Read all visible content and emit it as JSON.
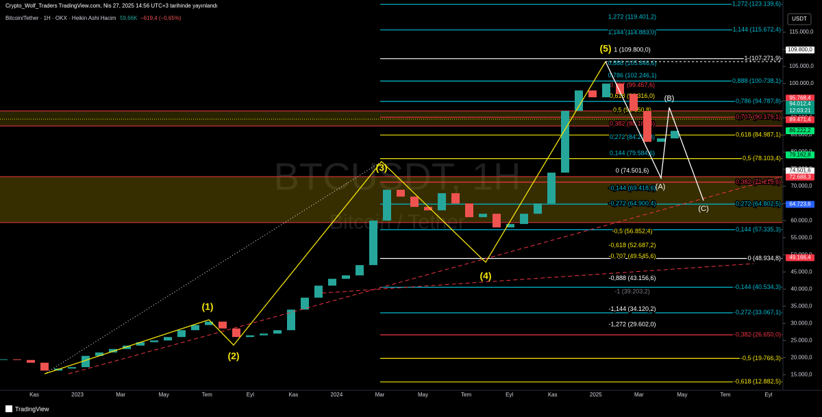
{
  "chart_data": {
    "type": "candlestick",
    "title": "Crypto_Wolf_Traders TradingView.com, Nis 27, 2025 14:56 UTC+3 tarihinde yayınlandı",
    "legend": "Bitcoin/Tether · 1H · OKX · Heikin Ashi  Hacim",
    "volume": "59,66K",
    "change": "−619,4 (−0,65%)",
    "watermark": "BTCUSDT, 1H",
    "watermark_sub": "Bitcoin / Tether",
    "currency": "USDT",
    "footer": "TradingView",
    "categories": [
      "Kas",
      "2023",
      "Mar",
      "May",
      "Tem",
      "Eyl",
      "Kas",
      "2024",
      "Mar",
      "May",
      "Tem",
      "Eyl",
      "Kas",
      "2025",
      "Mar",
      "May",
      "Tem",
      "Eyl"
    ],
    "candles": {
      "close": [
        19500,
        19300,
        18500,
        16200,
        16800,
        17200,
        20500,
        21500,
        22500,
        23500,
        24500,
        25000,
        26000,
        28000,
        29500,
        30500,
        28500,
        26000,
        26500,
        27000,
        28000,
        34000,
        37500,
        41000,
        43000,
        44000,
        47000,
        60000,
        69000,
        67000,
        64000,
        63000,
        68000,
        65000,
        61000,
        62000,
        58000,
        59000,
        62000,
        65000,
        74000,
        92000,
        98000,
        96000,
        100000,
        97000,
        92000,
        83000,
        84000,
        86200
      ]
    },
    "up_color": "#26a69a",
    "down_color": "#ef5350",
    "ylim": [
      10450,
      124405
    ],
    "yticks": [
      {
        "value": 15000,
        "label": "15.000,0"
      },
      {
        "value": 20000,
        "label": "20.000,0"
      },
      {
        "value": 25000,
        "label": "25.000,0"
      },
      {
        "value": 30000,
        "label": "30.000,0"
      },
      {
        "value": 35000,
        "label": "35.000,0"
      },
      {
        "value": 40000,
        "label": "40.000,0"
      },
      {
        "value": 45000,
        "label": "45.000,0"
      },
      {
        "value": 50000,
        "label": "50.000,0"
      },
      {
        "value": 55000,
        "label": "55.000,0"
      },
      {
        "value": 60000,
        "label": "60.000,0"
      },
      {
        "value": 65000,
        "label": "65.000,0"
      },
      {
        "value": 70000,
        "label": "70.000,0"
      },
      {
        "value": 75000,
        "label": "75.000,0"
      },
      {
        "value": 80000,
        "label": "80.000,0"
      },
      {
        "value": 85000,
        "label": "85.000,0"
      },
      {
        "value": 90000,
        "label": "90.000,0"
      },
      {
        "value": 95000,
        "label": "95.000,0"
      },
      {
        "value": 100000,
        "label": "100.000,0"
      },
      {
        "value": 105000,
        "label": "105.000,0"
      },
      {
        "value": 110000,
        "label": "110.000,0"
      },
      {
        "value": 115000,
        "label": "115.000,0"
      }
    ],
    "fib_right": [
      {
        "label": "1,272 (123.139,6)",
        "price": 123139.6,
        "color": "#00bcd4"
      },
      {
        "label": "1,144 (115.672,4)",
        "price": 115672.4,
        "color": "#00bcd4"
      },
      {
        "label": "1 (107.271,9)",
        "price": 107271.9,
        "color": "#ffffff"
      },
      {
        "label": "0,888 (100.738,1)",
        "price": 100738.1,
        "color": "#00bcd4"
      },
      {
        "label": "0,786 (94.787,8)",
        "price": 94787.8,
        "color": "#00bcd4"
      },
      {
        "label": "0,707 (90.179,1)",
        "price": 90179.1,
        "color": "#f23645"
      },
      {
        "label": "0,618 (84.987,1)",
        "price": 84987.1,
        "color": "#f5e50a"
      },
      {
        "label": "0,5 (78.103,4)",
        "price": 78103.4,
        "color": "#f5e50a"
      },
      {
        "label": "0,382 (71.219,6)",
        "price": 71219.6,
        "color": "#f23645"
      },
      {
        "label": "0,272 (64.802,5)",
        "price": 64802.5,
        "color": "#00bcd4"
      },
      {
        "label": "0,144 (57.335,3)",
        "price": 57335.3,
        "color": "#00bcd4"
      },
      {
        "label": "0 (48.934,8)",
        "price": 48934.8,
        "color": "#ffffff"
      },
      {
        "label": "-0,144 (40.534,3)",
        "price": 40534.3,
        "color": "#00bcd4"
      },
      {
        "label": "-0,272 (33.067,1)",
        "price": 33067.1,
        "color": "#00bcd4"
      },
      {
        "label": "-0,382 (26.650,0)",
        "price": 26650,
        "color": "#f23645"
      },
      {
        "label": "-0,5 (19.766,3)",
        "price": 19766.3,
        "color": "#f5e50a"
      },
      {
        "label": "-0,618 (12.882,5)",
        "price": 12882.5,
        "color": "#f5e50a"
      }
    ],
    "fib_middle": [
      {
        "label": "1,272 (119.401,2)",
        "price": 119401.2,
        "color": "#00bcd4"
      },
      {
        "label": "1,144 (114.883,0)",
        "price": 114883,
        "color": "#00bcd4"
      },
      {
        "label": "1 (109.800,0)",
        "price": 109800,
        "color": "#ffffff"
      },
      {
        "label": "0,888 (105.846,6)",
        "price": 105846.6,
        "color": "#00bcd4"
      },
      {
        "label": "0,786 (102.246,1)",
        "price": 102246.1,
        "color": "#00bcd4"
      },
      {
        "label": "0,707 (99.457,6)",
        "price": 99457.6,
        "color": "#f23645"
      },
      {
        "label": "0,618 (96.316,0)",
        "price": 96316,
        "color": "#f5e50a"
      },
      {
        "label": "0,5 (92.150,8)",
        "price": 92150.8,
        "color": "#f5e50a"
      },
      {
        "label": "0,382 (88.185,6)",
        "price": 88185.6,
        "color": "#f23645"
      },
      {
        "label": "0,272 (84.292,8)",
        "price": 84292.8,
        "color": "#00bcd4"
      },
      {
        "label": "0,144 (79.584,6)",
        "price": 79584.6,
        "color": "#00bcd4"
      },
      {
        "label": "0 (74.501,6)",
        "price": 74501.6,
        "color": "#ffffff"
      },
      {
        "label": "-0,144 (69.418,6)",
        "price": 69418.6,
        "color": "#00bcd4"
      },
      {
        "label": "-0,272 (64.900,4)",
        "price": 64900.4,
        "color": "#00bcd4"
      },
      {
        "label": "-0,5 (56.852,4)",
        "price": 56852.4,
        "color": "#f5e50a"
      },
      {
        "label": "-0,618 (52.687,2)",
        "price": 52687.2,
        "color": "#f5e50a"
      },
      {
        "label": "-0,707 (49.545,6)",
        "price": 49545.6,
        "color": "#f5e50a"
      },
      {
        "label": "-0,888 (43.156,6)",
        "price": 43156.6,
        "color": "#ffffff"
      },
      {
        "label": "-1 (39.203,2)",
        "price": 39203.2,
        "color": "#787b86"
      },
      {
        "label": "-1,144 (34.120,2)",
        "price": 34120.2,
        "color": "#ffffff"
      },
      {
        "label": "-1,272 (29.602,0)",
        "price": 29602,
        "color": "#ffffff"
      }
    ],
    "badges": [
      {
        "value": 109800,
        "label": "109.800,0",
        "bg": "#ffffff",
        "fg": "#000000"
      },
      {
        "value": 95768.4,
        "label": "95.768,4",
        "bg": "#f23645",
        "fg": "#ffffff"
      },
      {
        "value": 94012.4,
        "label": "94.012,4",
        "bg": "#089981",
        "fg": "#ffffff"
      },
      {
        "value": 89471.4,
        "label": "89.471,4",
        "bg": "#f23645",
        "fg": "#ffffff"
      },
      {
        "value": 86222.2,
        "label": "86.222,2",
        "bg": "#00e676",
        "fg": "#000000"
      },
      {
        "value": 79162.8,
        "label": "79.162,8",
        "bg": "#00e676",
        "fg": "#000000"
      },
      {
        "value": 74501.6,
        "label": "74.501,6",
        "bg": "#ffffff",
        "fg": "#000000"
      },
      {
        "value": 72688.3,
        "label": "72.688,3",
        "bg": "#f23645",
        "fg": "#ffffff"
      },
      {
        "value": 64723.6,
        "label": "64.723,6",
        "bg": "#2962ff",
        "fg": "#ffffff"
      },
      {
        "value": 49166.4,
        "label": "49.166,4",
        "bg": "#f23645",
        "fg": "#ffffff"
      }
    ],
    "countdown": "12:03:21",
    "waves": [
      "(1)",
      "(2)",
      "(3)",
      "(4)",
      "(5)",
      "(A)",
      "(B)",
      "(C)"
    ]
  }
}
